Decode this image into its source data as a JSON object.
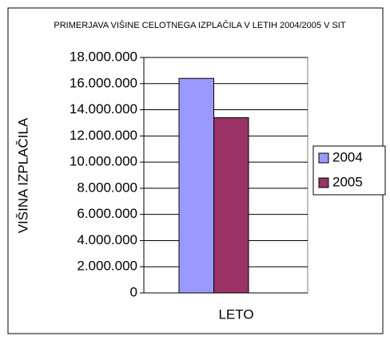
{
  "chart_data": {
    "type": "bar",
    "title": "PRIMERJAVA VIŠINE CELOTNEGA IZPLAČILA V LETIH 2004/2005 V SIT",
    "xlabel": "LETO",
    "ylabel": "VIŠINA IZPLAČILA",
    "categories": [
      "LETO"
    ],
    "series": [
      {
        "name": "2004",
        "color": "#9999ff",
        "values": [
          16400000
        ]
      },
      {
        "name": "2005",
        "color": "#993366",
        "values": [
          13400000
        ]
      }
    ],
    "ylim": [
      0,
      18000000
    ],
    "yticks": [
      0,
      {
        "value": 2000000,
        "label": "2.000.000"
      },
      {
        "value": 4000000,
        "label": "4.000.000"
      },
      {
        "value": 6000000,
        "label": "6.000.000"
      },
      {
        "value": 8000000,
        "label": "8.000.000"
      },
      {
        "value": 10000000,
        "label": "10.000.000"
      },
      {
        "value": 12000000,
        "label": "12.000.000"
      },
      {
        "value": 14000000,
        "label": "14.000.000"
      },
      {
        "value": 16000000,
        "label": "16.000.000"
      },
      {
        "value": 18000000,
        "label": "18.000.000"
      }
    ],
    "grid": true,
    "legend": "right"
  }
}
